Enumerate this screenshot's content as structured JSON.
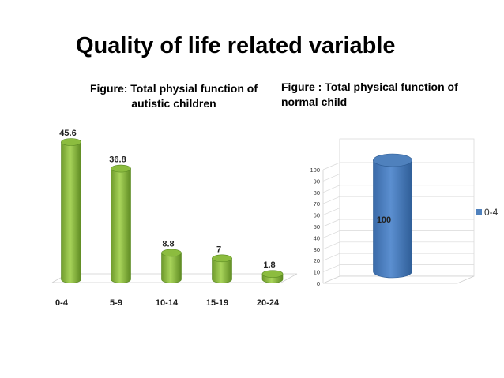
{
  "title": "Quality of life related variable",
  "chart_data": [
    {
      "type": "bar",
      "title_line1": "Figure: Total physial function of",
      "title_line2": "autistic children",
      "categories": [
        "0-4",
        "5-9",
        "10-14",
        "15-19",
        "20-24"
      ],
      "values": [
        45.6,
        36.8,
        8.8,
        7,
        1.8
      ],
      "value_labels": [
        "45.6",
        "36.8",
        "8.8",
        "7",
        "1.8"
      ],
      "ylim": [
        0,
        45.6
      ],
      "bar_color": "#8cbc3f",
      "grid": false
    },
    {
      "type": "bar",
      "title_line1": "Figure : Total physical function of",
      "title_line2": "normal child",
      "categories": [
        "0-4"
      ],
      "values": [
        100
      ],
      "value_labels": [
        "100"
      ],
      "ylim": [
        0,
        100
      ],
      "yticks": [
        "0",
        "10",
        "20",
        "30",
        "40",
        "50",
        "60",
        "70",
        "80",
        "90",
        "100"
      ],
      "legend": [
        {
          "name": "0-4",
          "color": "#4f81bd"
        }
      ],
      "legend_position": "right",
      "bar_color": "#4f81bd",
      "grid": true
    }
  ]
}
